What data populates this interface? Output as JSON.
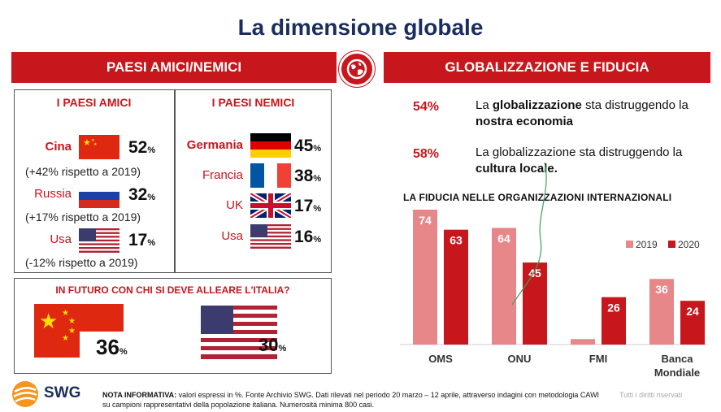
{
  "title": "La dimensione globale",
  "left_banner": "PAESI AMICI/NEMICI",
  "right_banner": "GLOBALIZZAZIONE E FIDUCIA",
  "friends": {
    "heading": "I PAESI AMICI",
    "items": [
      {
        "country": "Cina",
        "value": "52",
        "unit": "%",
        "note": "(+42% rispetto a 2019)"
      },
      {
        "country": "Russia",
        "value": "32",
        "unit": "%",
        "note": "(+17% rispetto a 2019)"
      },
      {
        "country": "Usa",
        "value": "17",
        "unit": "%",
        "note": "(-12% rispetto a 2019)"
      }
    ]
  },
  "enemies": {
    "heading": "I PAESI NEMICI",
    "items": [
      {
        "country": "Germania",
        "value": "45",
        "unit": "%"
      },
      {
        "country": "Francia",
        "value": "38",
        "unit": "%"
      },
      {
        "country": "UK",
        "value": "17",
        "unit": "%"
      },
      {
        "country": "Usa",
        "value": "16",
        "unit": "%"
      }
    ]
  },
  "alliance": {
    "question": "IN FUTURO CON CHI SI DEVE ALLEARE L'ITALIA?",
    "china": {
      "value": "36",
      "unit": "%"
    },
    "usa": {
      "value": "30",
      "unit": "%"
    }
  },
  "statements": [
    {
      "pct": "54%",
      "pre": "La ",
      "b1": "globalizzazione",
      "mid": " sta distruggendo la ",
      "b2": "nostra economia",
      "post": ""
    },
    {
      "pct": "58%",
      "pre": "La globalizzazione sta distruggendo la ",
      "b1": "cultura locale.",
      "mid": "",
      "b2": "",
      "post": ""
    }
  ],
  "chart_data": {
    "type": "bar",
    "title": "LA FIDUCIA NELLE ORGANIZZAZIONI INTERNAZIONALI",
    "categories": [
      "OMS",
      "ONU",
      "FMI",
      "Banca Mondiale"
    ],
    "series": [
      {
        "name": "2019",
        "values": [
          74,
          64,
          3,
          36
        ],
        "color": "#e8878a"
      },
      {
        "name": "2020",
        "values": [
          63,
          45,
          26,
          24
        ],
        "color": "#c8161d"
      }
    ],
    "ylim": [
      0,
      74
    ],
    "legend": "top-right",
    "grid": false
  },
  "footer": {
    "label": "NOTA INFORMATIVA:",
    "text": " valori espressi in %. Fonte Archivio SWG. Dati rilevati nel periodo 20 marzo – 12 aprile, attraverso indagini con metodologia CAWI su campioni rappresentativi della popolazione italiana. Numerosità minima 800 casi.",
    "rights": "Tutti i diritti riservati",
    "logo": "SWG"
  },
  "colors": {
    "accent": "#c8161d",
    "navy": "#1a2d5c",
    "light": "#e8878a"
  }
}
